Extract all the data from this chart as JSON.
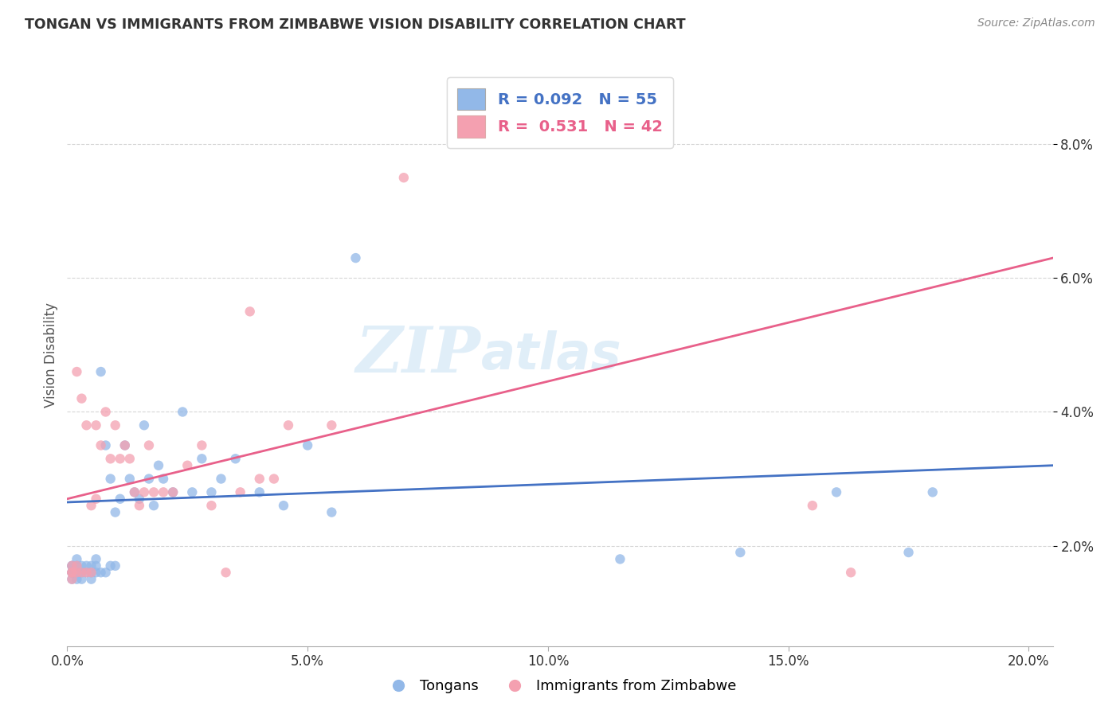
{
  "title": "TONGAN VS IMMIGRANTS FROM ZIMBABWE VISION DISABILITY CORRELATION CHART",
  "source": "Source: ZipAtlas.com",
  "xlabel_ticks": [
    "0.0%",
    "5.0%",
    "10.0%",
    "15.0%",
    "20.0%"
  ],
  "ylabel_ticks": [
    "2.0%",
    "4.0%",
    "6.0%",
    "8.0%"
  ],
  "xlabel_tick_vals": [
    0.0,
    0.05,
    0.1,
    0.15,
    0.2
  ],
  "ylabel_tick_vals": [
    0.02,
    0.04,
    0.06,
    0.08
  ],
  "xlabel_range": [
    0.0,
    0.205
  ],
  "ylabel_range": [
    0.005,
    0.092
  ],
  "ylabel_label": "Vision Disability",
  "legend_bottom": [
    "Tongans",
    "Immigrants from Zimbabwe"
  ],
  "blue_r": 0.092,
  "blue_n": 55,
  "pink_r": 0.531,
  "pink_n": 42,
  "blue_color": "#92b8e8",
  "pink_color": "#f4a0b0",
  "blue_line_color": "#4472c4",
  "pink_line_color": "#e8608a",
  "watermark_zip": "ZIP",
  "watermark_atlas": "atlas",
  "background_color": "#ffffff",
  "grid_color": "#cccccc",
  "tongans_x": [
    0.001,
    0.001,
    0.001,
    0.001,
    0.001,
    0.002,
    0.002,
    0.002,
    0.002,
    0.003,
    0.003,
    0.003,
    0.004,
    0.004,
    0.005,
    0.005,
    0.005,
    0.006,
    0.006,
    0.006,
    0.007,
    0.007,
    0.008,
    0.008,
    0.009,
    0.009,
    0.01,
    0.01,
    0.011,
    0.012,
    0.013,
    0.014,
    0.015,
    0.016,
    0.017,
    0.018,
    0.019,
    0.02,
    0.022,
    0.024,
    0.026,
    0.028,
    0.03,
    0.032,
    0.035,
    0.04,
    0.045,
    0.05,
    0.055,
    0.06,
    0.115,
    0.14,
    0.16,
    0.175,
    0.18
  ],
  "tongans_y": [
    0.015,
    0.016,
    0.016,
    0.017,
    0.017,
    0.015,
    0.016,
    0.017,
    0.018,
    0.015,
    0.016,
    0.017,
    0.016,
    0.017,
    0.015,
    0.016,
    0.017,
    0.016,
    0.017,
    0.018,
    0.016,
    0.046,
    0.016,
    0.035,
    0.017,
    0.03,
    0.017,
    0.025,
    0.027,
    0.035,
    0.03,
    0.028,
    0.027,
    0.038,
    0.03,
    0.026,
    0.032,
    0.03,
    0.028,
    0.04,
    0.028,
    0.033,
    0.028,
    0.03,
    0.033,
    0.028,
    0.026,
    0.035,
    0.025,
    0.063,
    0.018,
    0.019,
    0.028,
    0.019,
    0.028
  ],
  "zimbabwe_x": [
    0.001,
    0.001,
    0.001,
    0.001,
    0.002,
    0.002,
    0.002,
    0.003,
    0.003,
    0.004,
    0.004,
    0.005,
    0.005,
    0.006,
    0.006,
    0.007,
    0.008,
    0.009,
    0.01,
    0.011,
    0.012,
    0.013,
    0.014,
    0.015,
    0.016,
    0.017,
    0.018,
    0.02,
    0.022,
    0.025,
    0.028,
    0.03,
    0.033,
    0.036,
    0.038,
    0.04,
    0.043,
    0.046,
    0.055,
    0.07,
    0.155,
    0.163
  ],
  "zimbabwe_y": [
    0.015,
    0.016,
    0.016,
    0.017,
    0.016,
    0.017,
    0.046,
    0.016,
    0.042,
    0.016,
    0.038,
    0.016,
    0.026,
    0.038,
    0.027,
    0.035,
    0.04,
    0.033,
    0.038,
    0.033,
    0.035,
    0.033,
    0.028,
    0.026,
    0.028,
    0.035,
    0.028,
    0.028,
    0.028,
    0.032,
    0.035,
    0.026,
    0.016,
    0.028,
    0.055,
    0.03,
    0.03,
    0.038,
    0.038,
    0.075,
    0.026,
    0.016
  ]
}
